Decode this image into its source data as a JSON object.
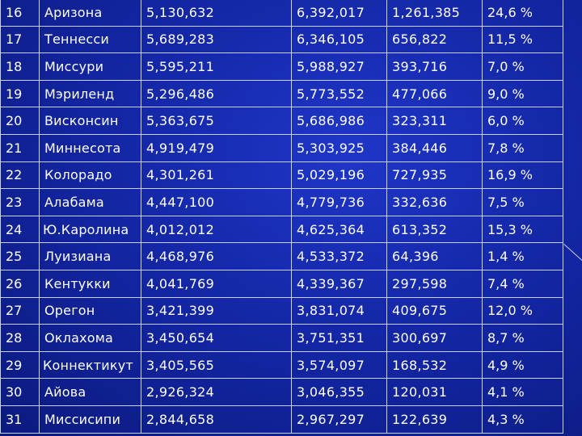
{
  "rows": [
    {
      "rank": "16",
      "state": "Аризона",
      "pop_2000": "5,130,632",
      "pop_2010": "6,392,017",
      "change": "1,261,385",
      "percent": "24,6 %"
    },
    {
      "rank": "17",
      "state": "Теннесси",
      "pop_2000": "5,689,283",
      "pop_2010": "6,346,105",
      "change": "656,822",
      "percent": "11,5 %"
    },
    {
      "rank": "18",
      "state": "Миссури",
      "pop_2000": "5,595,211",
      "pop_2010": "5,988,927",
      "change": "393,716",
      "percent": "7,0 %"
    },
    {
      "rank": "19",
      "state": "Мэриленд",
      "pop_2000": "5,296,486",
      "pop_2010": "5,773,552",
      "change": "477,066",
      "percent": "9,0 %"
    },
    {
      "rank": "20",
      "state": "Висконсин",
      "pop_2000": "5,363,675",
      "pop_2010": "5,686,986",
      "change": "323,311",
      "percent": "6,0 %"
    },
    {
      "rank": "21",
      "state": "Миннесота",
      "pop_2000": "4,919,479",
      "pop_2010": "5,303,925",
      "change": "384,446",
      "percent": "7,8 %"
    },
    {
      "rank": "22",
      "state": "Колорадо",
      "pop_2000": "4,301,261",
      "pop_2010": "5,029,196",
      "change": "727,935",
      "percent": "16,9 %"
    },
    {
      "rank": "23",
      "state": "Алабама",
      "pop_2000": "4,447,100",
      "pop_2010": "4,779,736",
      "change": "332,636",
      "percent": "7,5 %"
    },
    {
      "rank": "24",
      "state": "Ю.Каролина",
      "pop_2000": "4,012,012",
      "pop_2010": "4,625,364",
      "change": "613,352",
      "percent": "15,3 %"
    },
    {
      "rank": "25",
      "state": "Луизиана",
      "pop_2000": "4,468,976",
      "pop_2010": "4,533,372",
      "change": "64,396",
      "percent": "1,4 %"
    },
    {
      "rank": "26",
      "state": "Кентукки",
      "pop_2000": "4,041,769",
      "pop_2010": "4,339,367",
      "change": "297,598",
      "percent": "7,4 %"
    },
    {
      "rank": "27",
      "state": "Орегон",
      "pop_2000": "3,421,399",
      "pop_2010": "3,831,074",
      "change": "409,675",
      "percent": "12,0 %"
    },
    {
      "rank": "28",
      "state": "Оклахома",
      "pop_2000": "3,450,654",
      "pop_2010": "3,751,351",
      "change": "300,697",
      "percent": "8,7 %"
    },
    {
      "rank": "29",
      "state": "Коннектикут",
      "pop_2000": "3,405,565",
      "pop_2010": "3,574,097",
      "change": "168,532",
      "percent": "4,9 %"
    },
    {
      "rank": "30",
      "state": "Айова",
      "pop_2000": "2,926,324",
      "pop_2010": "3,046,355",
      "change": "120,031",
      "percent": "4,1 %"
    },
    {
      "rank": "31",
      "state": "Миссисипи",
      "pop_2000": "2,844,658",
      "pop_2010": "2,967,297",
      "change": "122,639",
      "percent": "4,3 %"
    }
  ],
  "colors": {
    "background": "#1427a6",
    "grid_line": "#c9d0ff",
    "text": "#ffffff",
    "change_text": "#ff8a3c",
    "percent_text": "#7dff5a"
  }
}
